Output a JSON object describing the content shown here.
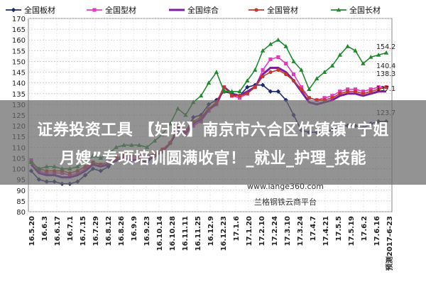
{
  "chart_data": {
    "type": "line",
    "ylim": [
      80,
      170
    ],
    "y_ticks": [
      80,
      85,
      90,
      95,
      100,
      105,
      110,
      115,
      120,
      125,
      130,
      135,
      140,
      145,
      150,
      155,
      160,
      165,
      170
    ],
    "grid": true,
    "legend_position": "top",
    "x_tick_labels": [
      "16.5.20",
      "16.6.3",
      "16.6.17",
      "16.7.1",
      "16.7.15",
      "16.7.29",
      "16.8.12",
      "16.8.26",
      "16.9.9",
      "16.9.23",
      "16.10.14",
      "16.10.28",
      "16.11.11",
      "16.11.25",
      "16.12.9",
      "16.12.23",
      "17.1.6",
      "17.1.20",
      "17.2.10",
      "17.2.24",
      "17.3.10",
      "17.3.24",
      "17.4.7",
      "17.4.21",
      "17.5.5",
      "17.5.19",
      "17.6.2",
      "17.6.16",
      "17.6.23"
    ],
    "x_tick_labels_note": [
      "",
      "",
      "",
      "",
      "",
      "",
      "",
      "",
      "",
      "",
      "",
      "",
      "",
      "",
      "",
      "",
      "",
      "",
      "",
      "",
      "",
      "",
      "",
      "",
      "",
      "",
      "",
      "",
      ""
    ],
    "last_tick_label": "预测2017-6-23",
    "series": [
      {
        "name": "全国板材",
        "color": "#1f2a6e",
        "marker": "diamond",
        "values": [
          99,
          95,
          94,
          94,
          93,
          93,
          94,
          97,
          100,
          99,
          101,
          104,
          105,
          104,
          104,
          103,
          106,
          108,
          112,
          119,
          117,
          124,
          125,
          130,
          132,
          136,
          135,
          134,
          138,
          139,
          139,
          136,
          136,
          132,
          125,
          118,
          117,
          117,
          117,
          118,
          120,
          120,
          120,
          119,
          121,
          122,
          122
        ]
      },
      {
        "name": "全国型材",
        "color": "#e23bbf",
        "marker": "square",
        "values": [
          104,
          99,
          98,
          98,
          98,
          97,
          98,
          100,
          103,
          102,
          103,
          105,
          106,
          105,
          105,
          104,
          107,
          109,
          112,
          117,
          116,
          120,
          122,
          127,
          130,
          138,
          134,
          133,
          135,
          138,
          146,
          151,
          152,
          149,
          144,
          138,
          133,
          132,
          133,
          134,
          136,
          137,
          137,
          136,
          137,
          138,
          138
        ]
      },
      {
        "name": "全国综合",
        "color": "#7b1fa0",
        "marker": "line",
        "values": [
          102,
          98,
          97,
          97,
          96,
          96,
          97,
          99,
          102,
          101,
          102,
          104,
          105,
          104,
          104,
          104,
          106,
          108,
          112,
          118,
          117,
          121,
          123,
          128,
          130,
          138,
          135,
          134,
          136,
          138,
          144,
          147,
          147,
          145,
          141,
          136,
          131,
          130,
          131,
          132,
          134,
          135,
          135,
          134,
          135,
          136,
          136
        ]
      },
      {
        "name": "全国管材",
        "color": "#c0392b",
        "marker": "circle",
        "values": [
          103,
          100,
          99,
          99,
          99,
          98,
          99,
          101,
          103,
          102,
          103,
          105,
          106,
          106,
          106,
          106,
          107,
          109,
          112,
          120,
          118,
          122,
          124,
          128,
          131,
          138,
          134,
          134,
          135,
          138,
          143,
          145,
          146,
          144,
          141,
          137,
          133,
          132,
          132,
          133,
          135,
          136,
          136,
          135,
          136,
          137,
          138
        ]
      },
      {
        "name": "全国长材",
        "color": "#1e8a2e",
        "marker": "triangle",
        "values": [
          103,
          100,
          101,
          101,
          100,
          100,
          101,
          103,
          106,
          105,
          107,
          110,
          111,
          111,
          111,
          110,
          113,
          116,
          121,
          128,
          125,
          131,
          134,
          140,
          145,
          136,
          136,
          136,
          141,
          146,
          155,
          158,
          160,
          157,
          150,
          146,
          137,
          142,
          145,
          148,
          153,
          157,
          155,
          149,
          152,
          153,
          154
        ]
      }
    ],
    "annotations": [
      "154.2",
      "140.4",
      "138.3",
      "137.1",
      "123.7"
    ]
  },
  "banner": {
    "line1": "证券投资工具 【妇联】南京市六合区竹镇镇“宁姐",
    "line2": "月嫂”专项培训圆满收官！_就业_护理_技能"
  },
  "watermark": {
    "url": "www.lange360.com",
    "name": "兰格钢铁云商平台"
  }
}
